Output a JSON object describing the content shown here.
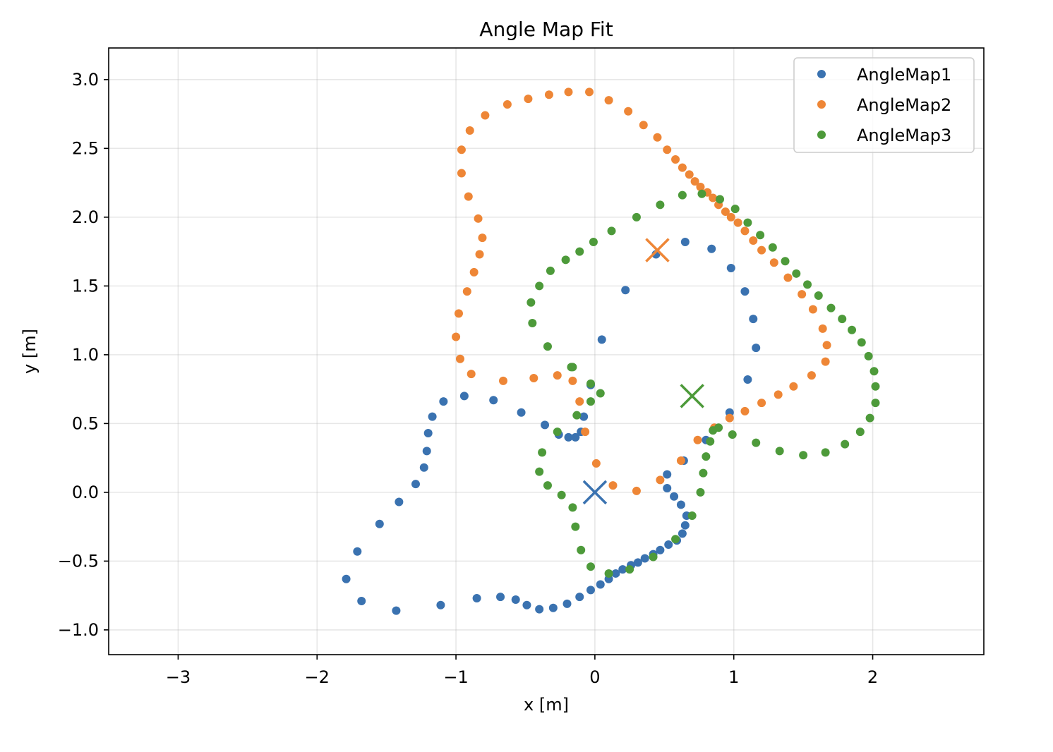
{
  "chart_data": {
    "type": "scatter",
    "title": "Angle Map Fit",
    "xlabel": "x [m]",
    "ylabel": "y [m]",
    "xlim": [
      -3.5,
      2.8
    ],
    "ylim": [
      -1.18,
      3.23
    ],
    "xticks": [
      -3,
      -2,
      -1,
      0,
      1,
      2
    ],
    "xtick_labels": [
      "−3",
      "−2",
      "−1",
      "0",
      "1",
      "2"
    ],
    "yticks": [
      -1.0,
      -0.5,
      0.0,
      0.5,
      1.0,
      1.5,
      2.0,
      2.5,
      3.0
    ],
    "ytick_labels": [
      "−1.0",
      "−0.5",
      "0.0",
      "0.5",
      "1.0",
      "1.5",
      "2.0",
      "2.5",
      "3.0"
    ],
    "grid": true,
    "legend_position": "top-right",
    "series": [
      {
        "name": "AngleMap1",
        "color": "#3a72b0",
        "points": [
          [
            0.65,
            1.82
          ],
          [
            0.84,
            1.77
          ],
          [
            0.98,
            1.63
          ],
          [
            1.08,
            1.46
          ],
          [
            1.14,
            1.26
          ],
          [
            1.16,
            1.05
          ],
          [
            1.1,
            0.82
          ],
          [
            0.97,
            0.58
          ],
          [
            0.8,
            0.38
          ],
          [
            0.64,
            0.23
          ],
          [
            0.52,
            0.13
          ],
          [
            0.52,
            0.03
          ],
          [
            0.57,
            -0.03
          ],
          [
            0.62,
            -0.09
          ],
          [
            0.66,
            -0.17
          ],
          [
            0.65,
            -0.24
          ],
          [
            0.63,
            -0.3
          ],
          [
            0.59,
            -0.35
          ],
          [
            0.53,
            -0.38
          ],
          [
            0.47,
            -0.42
          ],
          [
            0.42,
            -0.45
          ],
          [
            0.36,
            -0.48
          ],
          [
            0.31,
            -0.51
          ],
          [
            0.26,
            -0.53
          ],
          [
            0.2,
            -0.56
          ],
          [
            0.15,
            -0.59
          ],
          [
            0.1,
            -0.63
          ],
          [
            0.04,
            -0.67
          ],
          [
            -0.03,
            -0.71
          ],
          [
            -0.11,
            -0.76
          ],
          [
            -0.2,
            -0.81
          ],
          [
            -0.3,
            -0.84
          ],
          [
            -0.4,
            -0.85
          ],
          [
            -0.49,
            -0.82
          ],
          [
            -0.57,
            -0.78
          ],
          [
            -0.68,
            -0.76
          ],
          [
            -0.85,
            -0.77
          ],
          [
            -1.11,
            -0.82
          ],
          [
            -1.43,
            -0.86
          ],
          [
            -1.68,
            -0.79
          ],
          [
            -1.79,
            -0.63
          ],
          [
            -1.71,
            -0.43
          ],
          [
            -1.55,
            -0.23
          ],
          [
            -1.41,
            -0.07
          ],
          [
            -1.29,
            0.06
          ],
          [
            -1.23,
            0.18
          ],
          [
            -1.21,
            0.3
          ],
          [
            -1.2,
            0.43
          ],
          [
            -1.17,
            0.55
          ],
          [
            -1.09,
            0.66
          ],
          [
            -0.94,
            0.7
          ],
          [
            -0.73,
            0.67
          ],
          [
            -0.53,
            0.58
          ],
          [
            -0.36,
            0.49
          ],
          [
            -0.26,
            0.42
          ],
          [
            -0.19,
            0.4
          ],
          [
            -0.14,
            0.4
          ],
          [
            -0.1,
            0.44
          ],
          [
            -0.08,
            0.55
          ],
          [
            -0.03,
            0.78
          ],
          [
            0.05,
            1.11
          ],
          [
            0.22,
            1.47
          ],
          [
            0.44,
            1.73
          ]
        ]
      },
      {
        "name": "AngleMap2",
        "color": "#ee8636",
        "points": [
          [
            -0.07,
            0.44
          ],
          [
            -0.11,
            0.66
          ],
          [
            -0.16,
            0.81
          ],
          [
            -0.27,
            0.85
          ],
          [
            -0.44,
            0.83
          ],
          [
            -0.66,
            0.81
          ],
          [
            -0.89,
            0.86
          ],
          [
            -0.97,
            0.97
          ],
          [
            -1.0,
            1.13
          ],
          [
            -0.98,
            1.3
          ],
          [
            -0.92,
            1.46
          ],
          [
            -0.87,
            1.6
          ],
          [
            -0.83,
            1.73
          ],
          [
            -0.81,
            1.85
          ],
          [
            -0.84,
            1.99
          ],
          [
            -0.91,
            2.15
          ],
          [
            -0.96,
            2.32
          ],
          [
            -0.96,
            2.49
          ],
          [
            -0.9,
            2.63
          ],
          [
            -0.79,
            2.74
          ],
          [
            -0.63,
            2.82
          ],
          [
            -0.48,
            2.86
          ],
          [
            -0.33,
            2.89
          ],
          [
            -0.19,
            2.91
          ],
          [
            -0.04,
            2.91
          ],
          [
            0.1,
            2.85
          ],
          [
            0.24,
            2.77
          ],
          [
            0.35,
            2.67
          ],
          [
            0.45,
            2.58
          ],
          [
            0.52,
            2.49
          ],
          [
            0.58,
            2.42
          ],
          [
            0.63,
            2.36
          ],
          [
            0.68,
            2.31
          ],
          [
            0.72,
            2.26
          ],
          [
            0.76,
            2.22
          ],
          [
            0.81,
            2.18
          ],
          [
            0.85,
            2.14
          ],
          [
            0.89,
            2.09
          ],
          [
            0.94,
            2.04
          ],
          [
            0.98,
            2.0
          ],
          [
            1.03,
            1.96
          ],
          [
            1.08,
            1.9
          ],
          [
            1.14,
            1.83
          ],
          [
            1.2,
            1.76
          ],
          [
            1.29,
            1.67
          ],
          [
            1.39,
            1.56
          ],
          [
            1.49,
            1.44
          ],
          [
            1.57,
            1.33
          ],
          [
            1.64,
            1.19
          ],
          [
            1.67,
            1.07
          ],
          [
            1.66,
            0.95
          ],
          [
            1.56,
            0.85
          ],
          [
            1.43,
            0.77
          ],
          [
            1.32,
            0.71
          ],
          [
            1.2,
            0.65
          ],
          [
            1.08,
            0.59
          ],
          [
            0.97,
            0.54
          ],
          [
            0.86,
            0.47
          ],
          [
            0.74,
            0.38
          ],
          [
            0.62,
            0.23
          ],
          [
            0.47,
            0.09
          ],
          [
            0.3,
            0.01
          ],
          [
            0.13,
            0.05
          ],
          [
            0.01,
            0.21
          ]
        ]
      },
      {
        "name": "AngleMap3",
        "color": "#4d9a3a",
        "points": [
          [
            -0.03,
            0.79
          ],
          [
            -0.03,
            0.66
          ],
          [
            0.04,
            0.72
          ],
          [
            -0.13,
            0.56
          ],
          [
            -0.16,
            0.91
          ],
          [
            -0.27,
            0.44
          ],
          [
            -0.38,
            0.29
          ],
          [
            -0.4,
            0.15
          ],
          [
            -0.34,
            0.05
          ],
          [
            -0.24,
            -0.02
          ],
          [
            -0.16,
            -0.11
          ],
          [
            -0.14,
            -0.25
          ],
          [
            -0.1,
            -0.42
          ],
          [
            -0.03,
            -0.54
          ],
          [
            0.1,
            -0.59
          ],
          [
            0.25,
            -0.56
          ],
          [
            0.42,
            -0.47
          ],
          [
            0.58,
            -0.34
          ],
          [
            0.7,
            -0.17
          ],
          [
            0.76,
            0.0
          ],
          [
            0.78,
            0.14
          ],
          [
            0.8,
            0.26
          ],
          [
            0.83,
            0.37
          ],
          [
            0.85,
            0.45
          ],
          [
            0.89,
            0.47
          ],
          [
            0.99,
            0.42
          ],
          [
            1.16,
            0.36
          ],
          [
            1.33,
            0.3
          ],
          [
            1.5,
            0.27
          ],
          [
            1.66,
            0.29
          ],
          [
            1.8,
            0.35
          ],
          [
            1.91,
            0.44
          ],
          [
            1.98,
            0.54
          ],
          [
            2.02,
            0.65
          ],
          [
            2.02,
            0.77
          ],
          [
            2.01,
            0.88
          ],
          [
            1.97,
            0.99
          ],
          [
            1.92,
            1.09
          ],
          [
            1.85,
            1.18
          ],
          [
            1.78,
            1.26
          ],
          [
            1.7,
            1.34
          ],
          [
            1.61,
            1.43
          ],
          [
            1.53,
            1.51
          ],
          [
            1.45,
            1.59
          ],
          [
            1.37,
            1.68
          ],
          [
            1.28,
            1.78
          ],
          [
            1.19,
            1.87
          ],
          [
            1.1,
            1.96
          ],
          [
            1.01,
            2.06
          ],
          [
            0.9,
            2.13
          ],
          [
            0.77,
            2.17
          ],
          [
            0.63,
            2.16
          ],
          [
            0.47,
            2.09
          ],
          [
            0.3,
            2.0
          ],
          [
            0.12,
            1.9
          ],
          [
            -0.01,
            1.82
          ],
          [
            -0.11,
            1.75
          ],
          [
            -0.21,
            1.69
          ],
          [
            -0.32,
            1.61
          ],
          [
            -0.4,
            1.5
          ],
          [
            -0.46,
            1.38
          ],
          [
            -0.45,
            1.23
          ],
          [
            -0.34,
            1.06
          ],
          [
            -0.17,
            0.91
          ]
        ]
      }
    ],
    "centers": [
      {
        "series": "AngleMap1",
        "color": "#3a72b0",
        "point": [
          0.0,
          0.0
        ]
      },
      {
        "series": "AngleMap2",
        "color": "#ee8636",
        "point": [
          0.45,
          1.76
        ]
      },
      {
        "series": "AngleMap3",
        "color": "#4d9a3a",
        "point": [
          0.7,
          0.7
        ]
      }
    ]
  }
}
